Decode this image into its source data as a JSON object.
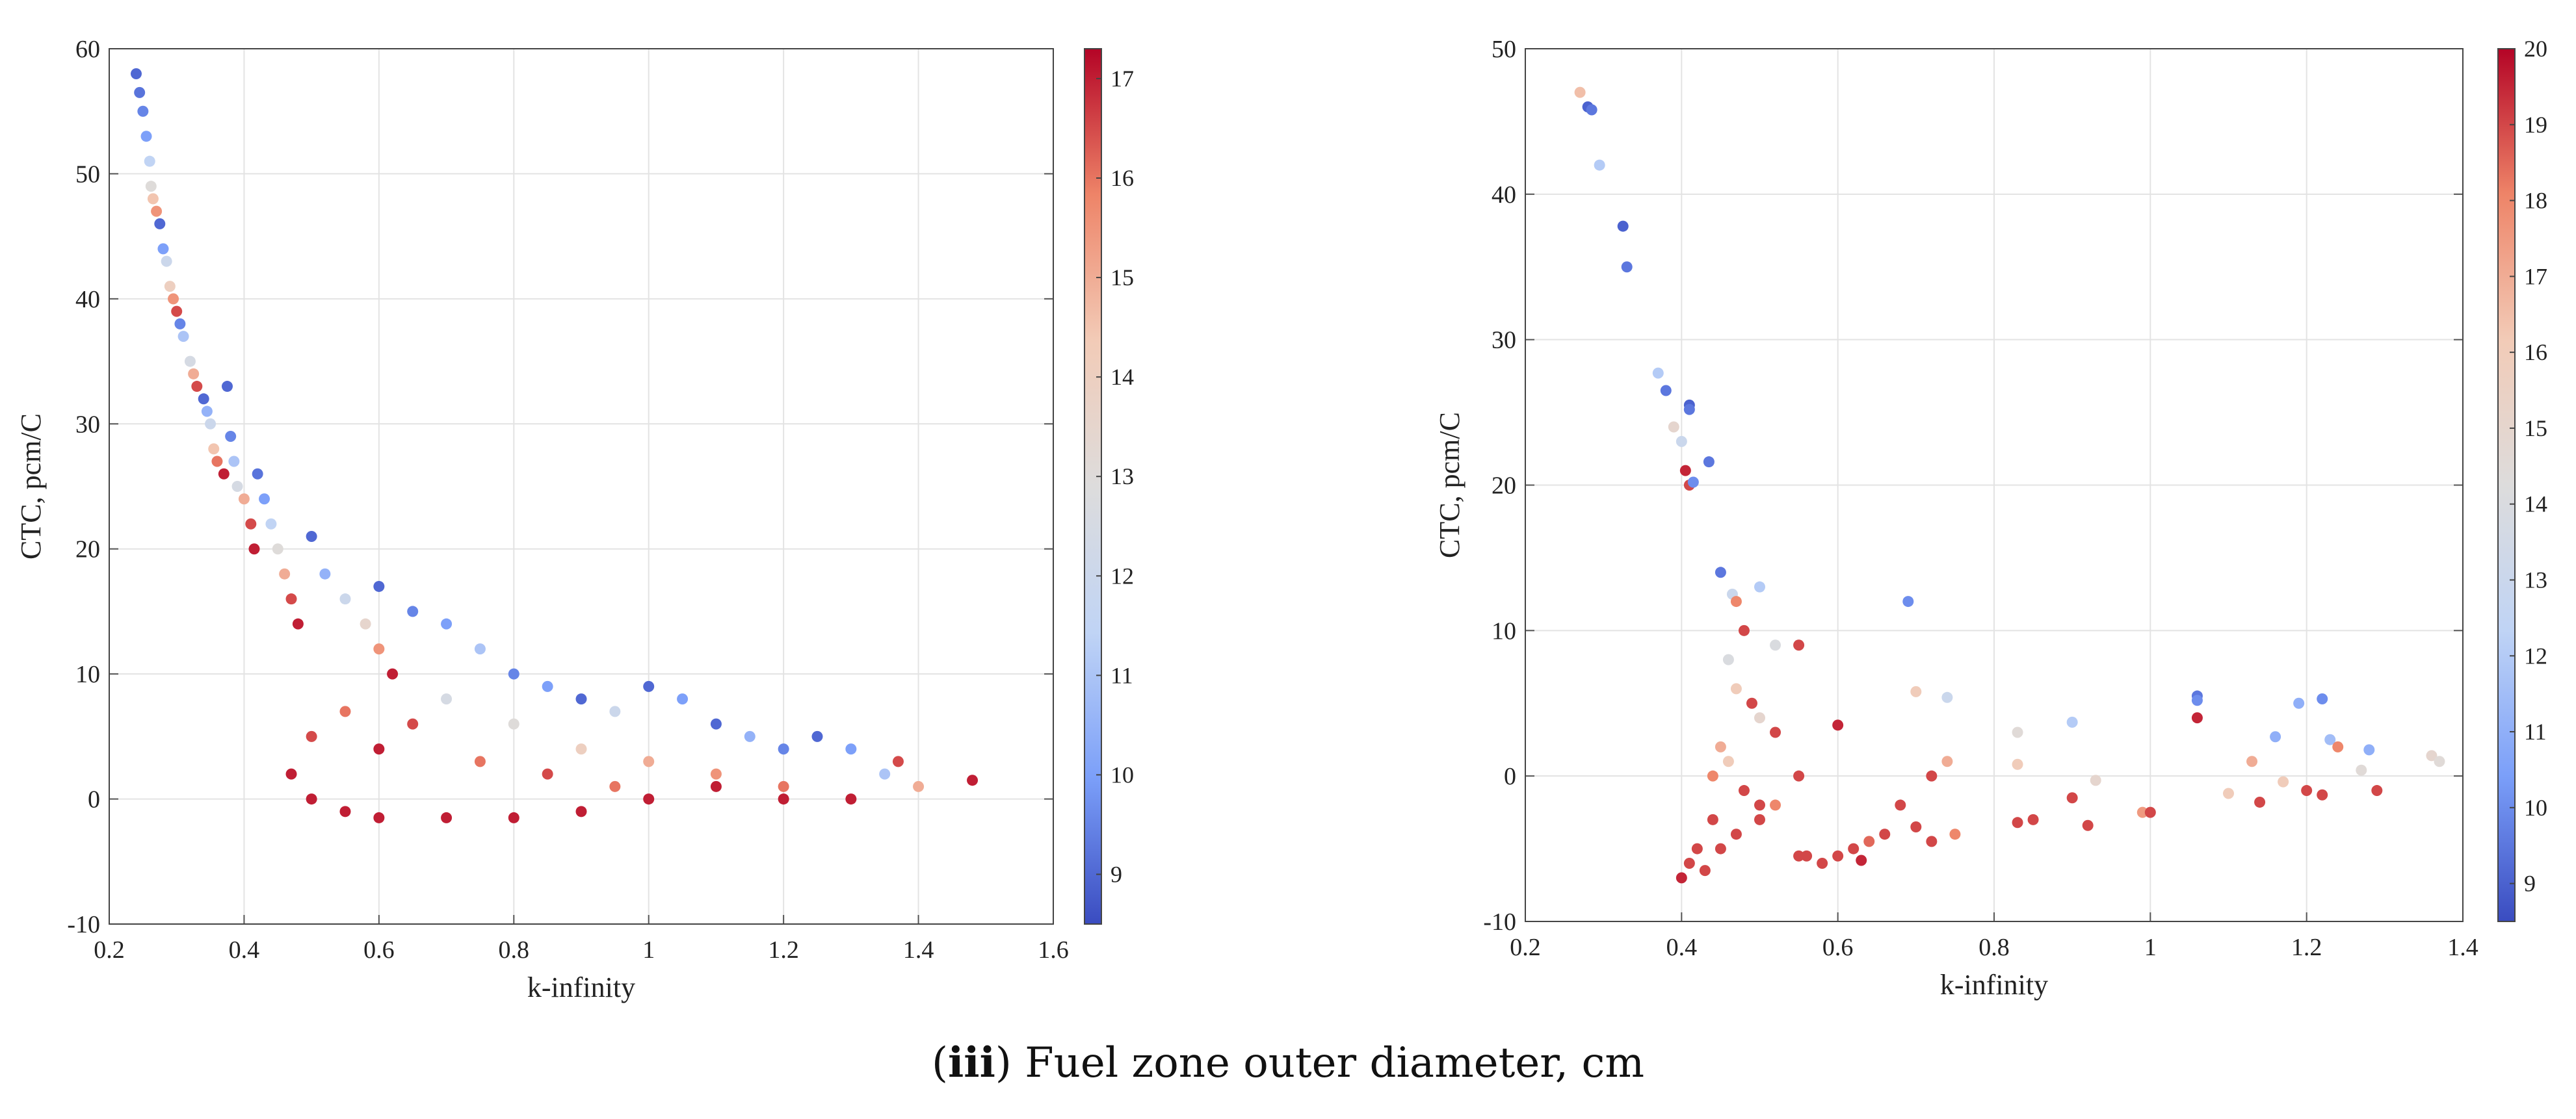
{
  "caption": {
    "open": "(",
    "label": "iii",
    "text": ") Fuel zone outer diameter, cm"
  },
  "colormap": [
    "#3a4cc0",
    "#7b9ff9",
    "#c0d4f5",
    "#dddcdc",
    "#f2cbb7",
    "#ee8468",
    "#b40426"
  ],
  "chart_data": [
    {
      "type": "scatter",
      "id": "left",
      "title": "",
      "xlabel": "k-infinity",
      "ylabel": "CTC, pcm/C",
      "xlim": [
        0.2,
        1.6
      ],
      "ylim": [
        -10,
        60
      ],
      "xticks": [
        "0.2",
        "0.4",
        "0.6",
        "0.8",
        "1",
        "1.2",
        "1.4",
        "1.6"
      ],
      "yticks": [
        "-10",
        "0",
        "10",
        "20",
        "30",
        "40",
        "50",
        "60"
      ],
      "grid": true,
      "colorbar": {
        "min": 8.5,
        "max": 17.3,
        "ticks": [
          "9",
          "10",
          "11",
          "12",
          "13",
          "14",
          "15",
          "16",
          "17"
        ]
      },
      "trend": "CTC decreases steeply from about 58 pcm/C at k-infinity 0.24 to near 0 pcm/C for k-infinity above 0.45; a dense cluster of large-diameter (~17 cm) points lies between 0.45 and 1.0 at CTC -2 to 5; smaller diameters (~9 cm) form the upper edge of the band.",
      "points": [
        [
          0.24,
          58,
          9
        ],
        [
          0.245,
          56.5,
          9.2
        ],
        [
          0.25,
          55,
          9.5
        ],
        [
          0.255,
          53,
          10
        ],
        [
          0.26,
          51,
          11.5
        ],
        [
          0.262,
          49,
          13
        ],
        [
          0.265,
          48,
          14.5
        ],
        [
          0.27,
          47,
          15.5
        ],
        [
          0.275,
          46,
          9
        ],
        [
          0.28,
          44,
          10
        ],
        [
          0.285,
          43,
          12
        ],
        [
          0.29,
          41,
          14
        ],
        [
          0.295,
          40,
          15.5
        ],
        [
          0.3,
          39,
          16.5
        ],
        [
          0.305,
          38,
          9.5
        ],
        [
          0.31,
          37,
          11
        ],
        [
          0.32,
          35,
          12.5
        ],
        [
          0.325,
          34,
          15
        ],
        [
          0.33,
          33,
          16.5
        ],
        [
          0.34,
          32,
          9
        ],
        [
          0.345,
          31,
          10.5
        ],
        [
          0.35,
          30,
          12
        ],
        [
          0.355,
          28,
          14.5
        ],
        [
          0.36,
          27,
          16
        ],
        [
          0.37,
          26,
          17
        ],
        [
          0.375,
          33,
          9
        ],
        [
          0.38,
          29,
          9.5
        ],
        [
          0.385,
          27,
          11
        ],
        [
          0.39,
          25,
          12.5
        ],
        [
          0.4,
          24,
          15
        ],
        [
          0.41,
          22,
          16.5
        ],
        [
          0.415,
          20,
          17
        ],
        [
          0.42,
          26,
          9.2
        ],
        [
          0.43,
          24,
          10
        ],
        [
          0.44,
          22,
          11.5
        ],
        [
          0.45,
          20,
          13
        ],
        [
          0.46,
          18,
          15
        ],
        [
          0.47,
          16,
          16.5
        ],
        [
          0.48,
          14,
          17
        ],
        [
          0.5,
          21,
          9
        ],
        [
          0.52,
          18,
          10.5
        ],
        [
          0.55,
          16,
          12
        ],
        [
          0.58,
          14,
          13.5
        ],
        [
          0.6,
          12,
          15.5
        ],
        [
          0.62,
          10,
          17
        ],
        [
          0.6,
          17,
          9
        ],
        [
          0.65,
          15,
          9.5
        ],
        [
          0.7,
          14,
          10
        ],
        [
          0.75,
          12,
          11
        ],
        [
          0.8,
          10,
          9.5
        ],
        [
          0.85,
          9,
          10
        ],
        [
          0.9,
          8,
          9
        ],
        [
          0.95,
          7,
          12
        ],
        [
          1.0,
          9,
          9
        ],
        [
          1.05,
          8,
          10
        ],
        [
          1.1,
          6,
          9
        ],
        [
          1.15,
          5,
          10.5
        ],
        [
          1.2,
          4,
          9.5
        ],
        [
          1.25,
          5,
          9
        ],
        [
          1.3,
          4,
          10
        ],
        [
          1.35,
          2,
          11
        ],
        [
          1.37,
          3,
          16.5
        ],
        [
          1.4,
          1,
          15
        ],
        [
          1.48,
          1.5,
          17
        ],
        [
          0.7,
          8,
          12.5
        ],
        [
          0.8,
          6,
          13
        ],
        [
          0.9,
          4,
          14
        ],
        [
          1.0,
          3,
          15
        ],
        [
          1.1,
          2,
          15.5
        ],
        [
          1.2,
          1,
          16
        ],
        [
          0.47,
          2,
          17
        ],
        [
          0.5,
          0,
          17
        ],
        [
          0.55,
          -1,
          17
        ],
        [
          0.6,
          -1.5,
          17
        ],
        [
          0.7,
          -1.5,
          17
        ],
        [
          0.8,
          -1.5,
          17
        ],
        [
          0.9,
          -1,
          17
        ],
        [
          1.0,
          0,
          17
        ],
        [
          1.1,
          1,
          17
        ],
        [
          1.2,
          0,
          17
        ],
        [
          1.3,
          0,
          17
        ],
        [
          0.5,
          5,
          16.5
        ],
        [
          0.55,
          7,
          16
        ],
        [
          0.6,
          4,
          17
        ],
        [
          0.65,
          6,
          16.5
        ],
        [
          0.75,
          3,
          16
        ],
        [
          0.85,
          2,
          16.5
        ],
        [
          0.95,
          1,
          16
        ]
      ]
    },
    {
      "type": "scatter",
      "id": "right",
      "title": "",
      "xlabel": "k-infinity",
      "ylabel": "CTC, pcm/C",
      "xlim": [
        0.2,
        1.4
      ],
      "ylim": [
        -10,
        50
      ],
      "xticks": [
        "0.2",
        "0.4",
        "0.6",
        "0.8",
        "1",
        "1.2",
        "1.4"
      ],
      "yticks": [
        "-10",
        "0",
        "10",
        "20",
        "30",
        "40",
        "50"
      ],
      "grid": true,
      "colorbar": {
        "min": 8.5,
        "max": 20,
        "ticks": [
          "9",
          "10",
          "11",
          "12",
          "13",
          "14",
          "15",
          "16",
          "17",
          "18",
          "19",
          "20"
        ]
      },
      "points": [
        [
          0.27,
          47,
          16.5
        ],
        [
          0.28,
          46,
          9
        ],
        [
          0.285,
          45.8,
          9.5
        ],
        [
          0.295,
          42,
          12
        ],
        [
          0.325,
          37.8,
          9
        ],
        [
          0.33,
          35,
          9.5
        ],
        [
          0.37,
          27.7,
          12
        ],
        [
          0.38,
          26.5,
          9.5
        ],
        [
          0.39,
          24,
          15
        ],
        [
          0.4,
          23,
          13
        ],
        [
          0.41,
          25.5,
          9
        ],
        [
          0.41,
          25.2,
          9.5
        ],
        [
          0.435,
          21.6,
          9.5
        ],
        [
          0.405,
          21,
          19.5
        ],
        [
          0.41,
          20,
          19
        ],
        [
          0.415,
          20.2,
          10
        ],
        [
          0.45,
          14,
          9.5
        ],
        [
          0.465,
          12.5,
          13
        ],
        [
          0.47,
          12,
          18
        ],
        [
          0.5,
          13,
          12
        ],
        [
          0.69,
          12,
          10
        ],
        [
          0.48,
          10,
          19
        ],
        [
          0.52,
          9,
          14
        ],
        [
          0.55,
          9,
          19
        ],
        [
          0.46,
          8,
          14
        ],
        [
          0.47,
          6,
          16
        ],
        [
          0.49,
          5,
          19
        ],
        [
          0.5,
          4,
          15
        ],
        [
          0.52,
          3,
          19
        ],
        [
          0.45,
          2,
          17
        ],
        [
          0.44,
          0,
          18
        ],
        [
          0.46,
          1,
          16
        ],
        [
          0.48,
          -1,
          19
        ],
        [
          0.5,
          -2,
          19
        ],
        [
          0.55,
          0,
          19
        ],
        [
          0.6,
          3.5,
          19.5
        ],
        [
          0.7,
          5.8,
          16
        ],
        [
          0.74,
          5.4,
          13
        ],
        [
          0.74,
          1,
          17
        ],
        [
          0.72,
          0,
          19
        ],
        [
          0.44,
          -3,
          19
        ],
        [
          0.42,
          -5,
          19
        ],
        [
          0.41,
          -6,
          19
        ],
        [
          0.4,
          -7,
          19.5
        ],
        [
          0.43,
          -6.5,
          19
        ],
        [
          0.45,
          -5,
          19
        ],
        [
          0.47,
          -4,
          19
        ],
        [
          0.5,
          -3,
          19
        ],
        [
          0.52,
          -2,
          18
        ],
        [
          0.56,
          -5.5,
          19
        ],
        [
          0.6,
          -5.5,
          19
        ],
        [
          0.63,
          -5.8,
          19.5
        ],
        [
          0.66,
          -4,
          19
        ],
        [
          0.68,
          -2,
          19
        ],
        [
          0.7,
          -3.5,
          19
        ],
        [
          0.72,
          -4.5,
          19
        ],
        [
          0.75,
          -4,
          18
        ],
        [
          0.83,
          -3.2,
          19
        ],
        [
          0.85,
          -3,
          19
        ],
        [
          0.9,
          -1.5,
          19
        ],
        [
          0.92,
          -3.4,
          19
        ],
        [
          0.99,
          -2.5,
          17.5
        ],
        [
          1.0,
          -2.5,
          19
        ],
        [
          0.83,
          3,
          14.5
        ],
        [
          0.83,
          0.8,
          16
        ],
        [
          0.9,
          3.7,
          12
        ],
        [
          0.93,
          -0.3,
          15
        ],
        [
          1.06,
          5.5,
          9.5
        ],
        [
          1.06,
          5.2,
          10
        ],
        [
          1.06,
          4,
          19.5
        ],
        [
          1.1,
          -1.2,
          16
        ],
        [
          1.13,
          1,
          17
        ],
        [
          1.14,
          -1.8,
          19
        ],
        [
          1.16,
          2.7,
          11
        ],
        [
          1.17,
          -0.4,
          16
        ],
        [
          1.19,
          5,
          11
        ],
        [
          1.22,
          5.3,
          10
        ],
        [
          1.23,
          2.5,
          11.5
        ],
        [
          1.2,
          -1,
          19
        ],
        [
          1.22,
          -1.3,
          19
        ],
        [
          1.24,
          2,
          18
        ],
        [
          1.27,
          0.4,
          14.5
        ],
        [
          1.28,
          1.8,
          11
        ],
        [
          1.29,
          -1,
          19
        ],
        [
          1.36,
          1.4,
          15
        ],
        [
          1.37,
          1,
          14.5
        ],
        [
          0.55,
          -5.5,
          19
        ],
        [
          0.58,
          -6,
          19
        ],
        [
          0.62,
          -5,
          19
        ],
        [
          0.64,
          -4.5,
          18.5
        ]
      ]
    }
  ]
}
